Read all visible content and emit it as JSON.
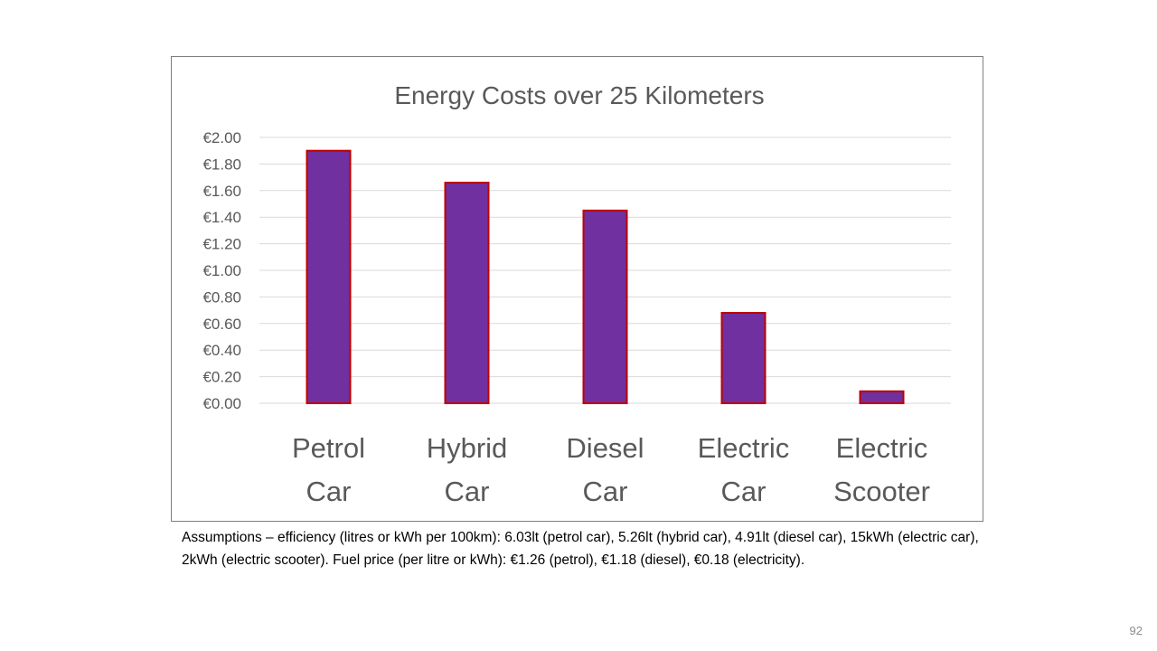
{
  "colors": {
    "bar_fill": "#7030a0",
    "bar_outline": "#c00000",
    "text": "#595959",
    "gridline": "#d9d9d9",
    "frame": "#7f7f7f"
  },
  "chart_data": {
    "type": "bar",
    "title": "Energy Costs over 25 Kilometers",
    "categories": [
      "Petrol Car",
      "Hybrid Car",
      "Diesel Car",
      "Electric Car",
      "Electric Scooter"
    ],
    "category_lines": [
      [
        "Petrol",
        "Car"
      ],
      [
        "Hybrid",
        "Car"
      ],
      [
        "Diesel",
        "Car"
      ],
      [
        "Electric",
        "Car"
      ],
      [
        "Electric",
        "Scooter"
      ]
    ],
    "values": [
      1.9,
      1.66,
      1.45,
      0.68,
      0.09
    ],
    "ylim": [
      0,
      2.0
    ],
    "yticks": [
      0,
      0.2,
      0.4,
      0.6,
      0.8,
      1.0,
      1.2,
      1.4,
      1.6,
      1.8,
      2.0
    ],
    "ytick_labels": [
      "€0.00",
      "€0.20",
      "€0.40",
      "€0.60",
      "€0.80",
      "€1.00",
      "€1.20",
      "€1.40",
      "€1.60",
      "€1.80",
      "€2.00"
    ],
    "xlabel": "",
    "ylabel": "",
    "grid": true,
    "legend": "none"
  },
  "assumptions_text": "Assumptions – efficiency (litres or kWh per 100km): 6.03lt (petrol car), 5.26lt (hybrid car), 4.91lt (diesel car), 15kWh (electric car), 2kWh (electric scooter). Fuel price (per litre or kWh): €1.26 (petrol), €1.18 (diesel), €0.18 (electricity).",
  "page_number": "92"
}
